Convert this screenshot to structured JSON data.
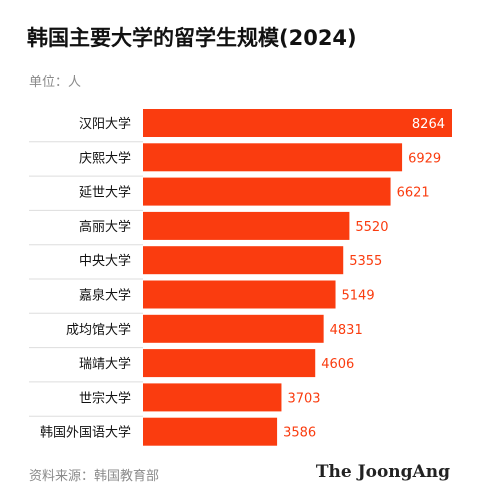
{
  "title": "韩国主要大学的留学生规模(2024)",
  "unit_label": "单位：人",
  "source": "资料来源：韩国教育部",
  "brand": "The JoongAng",
  "colors": {
    "bar": "#fa3c0f",
    "inner_label": "#ffffff",
    "outer_label": "#fa3c0f",
    "category_label": "#111111",
    "separator": "#dddddd"
  },
  "chart_data": {
    "type": "bar",
    "orientation": "horizontal",
    "title": "韩国主要大学的留学生规模(2024)",
    "unit": "人",
    "categories": [
      "汉阳大学",
      "庆熙大学",
      "延世大学",
      "高丽大学",
      "中央大学",
      "嘉泉大学",
      "成均馆大学",
      "瑞靖大学",
      "世宗大学",
      "韩国外国语大学"
    ],
    "values": [
      8264,
      6929,
      6621,
      5520,
      5355,
      5149,
      4831,
      4606,
      3703,
      3586
    ],
    "xlim": [
      0,
      8264
    ],
    "grid": false,
    "legend": "none"
  }
}
